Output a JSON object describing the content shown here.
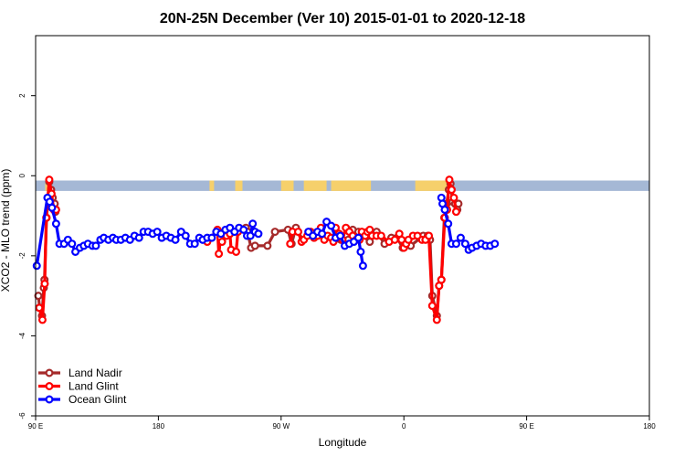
{
  "chart_data": {
    "type": "line",
    "title": "20N-25N December (Ver 10)   2015-01-01 to 2020-12-18",
    "xlabel": "Longitude",
    "ylabel": "XCO2 - MLO trend (ppm)",
    "xlim": [
      -90,
      180
    ],
    "ylim": [
      -6,
      3.5
    ],
    "x_ticks": [
      -90,
      -36,
      18,
      72,
      126,
      180
    ],
    "x_tick_labels": [
      "90 E",
      "180",
      "90 W",
      "0",
      "90 E",
      "180"
    ],
    "y_ticks": [
      -6,
      -4,
      -2,
      0,
      2
    ],
    "y_tick_labels": [
      "-6",
      "-4",
      "-2",
      "0",
      "2"
    ],
    "grid": false,
    "legend_position": "bottom-left",
    "land_strip": {
      "y_range": [
        -0.38,
        -0.12
      ],
      "ocean_color": "#a5b8d5",
      "land_color": "#f6d06b",
      "land_x": [
        [
          -85.8,
          -83.6
        ],
        [
          -13.5,
          -11.5
        ],
        [
          -2.2,
          -0.3
        ],
        [
          -0.5,
          1.0
        ],
        [
          18.0,
          23.5
        ],
        [
          28.0,
          38.0
        ],
        [
          40.0,
          57.5
        ],
        [
          77.0,
          92.5
        ]
      ]
    },
    "series": [
      {
        "name": "Land Nadir",
        "color": "#a52a2a",
        "points": [
          [
            -88.8,
            -3.0
          ],
          [
            -88.2,
            -3.3
          ],
          [
            -87.2,
            -3.5
          ],
          [
            -86.4,
            -2.8
          ],
          [
            -86.1,
            -2.6
          ],
          [
            -85.2,
            -1.05
          ],
          [
            -84.0,
            -0.15
          ],
          [
            -83.2,
            -0.35
          ],
          [
            -82.5,
            -0.55
          ],
          [
            -81.6,
            -0.7
          ],
          [
            -81.3,
            -0.9
          ],
          [
            2.5,
            -1.3
          ],
          [
            3.2,
            -1.4
          ],
          [
            4.8,
            -1.8
          ],
          [
            6.5,
            -1.75
          ],
          [
            12.0,
            -1.75
          ],
          [
            15.3,
            -1.4
          ],
          [
            21.0,
            -1.35
          ],
          [
            22.6,
            -1.7
          ],
          [
            24.5,
            -1.3
          ],
          [
            27.5,
            -1.6
          ],
          [
            41.5,
            -1.6
          ],
          [
            44.3,
            -1.6
          ],
          [
            47.5,
            -1.6
          ],
          [
            49.5,
            -1.35
          ],
          [
            52.0,
            -1.4
          ],
          [
            57.0,
            -1.65
          ],
          [
            60.0,
            -1.4
          ],
          [
            63.5,
            -1.7
          ],
          [
            66.5,
            -1.55
          ],
          [
            69.0,
            -1.55
          ],
          [
            71.5,
            -1.8
          ],
          [
            75.0,
            -1.75
          ],
          [
            80.5,
            -1.5
          ],
          [
            82.5,
            -1.5
          ],
          [
            83.5,
            -1.6
          ],
          [
            84.5,
            -3.0
          ],
          [
            86.5,
            -3.5
          ],
          [
            87.5,
            -2.75
          ],
          [
            88.5,
            -2.6
          ],
          [
            89.8,
            -1.05
          ],
          [
            90.8,
            -0.7
          ],
          [
            91.8,
            -0.35
          ],
          [
            92.5,
            -0.2
          ],
          [
            93.5,
            -0.65
          ],
          [
            94.5,
            -0.7
          ],
          [
            95.5,
            -0.85
          ],
          [
            96.0,
            -0.7
          ]
        ]
      },
      {
        "name": "Land Glint",
        "color": "#ff0000",
        "points": [
          [
            -88.4,
            -3.3
          ],
          [
            -87.0,
            -3.6
          ],
          [
            -86.0,
            -2.7
          ],
          [
            -85.3,
            -1.05
          ],
          [
            -84.0,
            -0.1
          ],
          [
            -83.0,
            -0.45
          ],
          [
            -82.0,
            -0.85
          ],
          [
            -81.0,
            -0.85
          ],
          [
            -14.5,
            -1.65
          ],
          [
            -10.0,
            -1.35
          ],
          [
            -9.4,
            -1.95
          ],
          [
            -8.6,
            -1.55
          ],
          [
            -8.0,
            -1.65
          ],
          [
            -6.9,
            -1.4
          ],
          [
            -6.0,
            -1.5
          ],
          [
            -4.5,
            -1.45
          ],
          [
            -4.0,
            -1.85
          ],
          [
            -1.8,
            -1.9
          ],
          [
            -1.0,
            -1.4
          ],
          [
            22.0,
            -1.7
          ],
          [
            23.0,
            -1.4
          ],
          [
            25.5,
            -1.4
          ],
          [
            27.0,
            -1.65
          ],
          [
            28.0,
            -1.6
          ],
          [
            29.5,
            -1.5
          ],
          [
            31.0,
            -1.4
          ],
          [
            32.5,
            -1.55
          ],
          [
            34.0,
            -1.5
          ],
          [
            35.5,
            -1.3
          ],
          [
            37.0,
            -1.6
          ],
          [
            38.5,
            -1.5
          ],
          [
            40.0,
            -1.55
          ],
          [
            41.0,
            -1.65
          ],
          [
            42.0,
            -1.3
          ],
          [
            43.5,
            -1.45
          ],
          [
            45.0,
            -1.6
          ],
          [
            46.5,
            -1.3
          ],
          [
            48.0,
            -1.4
          ],
          [
            49.5,
            -1.5
          ],
          [
            51.0,
            -1.6
          ],
          [
            52.5,
            -1.6
          ],
          [
            53.5,
            -1.4
          ],
          [
            55.0,
            -1.5
          ],
          [
            56.0,
            -1.4
          ],
          [
            57.0,
            -1.35
          ],
          [
            58.0,
            -1.5
          ],
          [
            60.0,
            -1.5
          ],
          [
            62.0,
            -1.5
          ],
          [
            65.5,
            -1.65
          ],
          [
            68.0,
            -1.6
          ],
          [
            70.0,
            -1.45
          ],
          [
            71.0,
            -1.6
          ],
          [
            72.0,
            -1.8
          ],
          [
            73.0,
            -1.7
          ],
          [
            74.0,
            -1.6
          ],
          [
            76.0,
            -1.5
          ],
          [
            78.0,
            -1.5
          ],
          [
            80.0,
            -1.6
          ],
          [
            81.5,
            -1.6
          ],
          [
            83.0,
            -1.5
          ],
          [
            84.5,
            -3.25
          ],
          [
            86.5,
            -3.6
          ],
          [
            87.5,
            -2.75
          ],
          [
            88.5,
            -2.6
          ],
          [
            90.0,
            -1.05
          ],
          [
            91.0,
            -0.85
          ],
          [
            92.0,
            -0.1
          ],
          [
            93.0,
            -0.35
          ],
          [
            94.0,
            -0.55
          ],
          [
            95.0,
            -0.9
          ]
        ]
      },
      {
        "name": "Ocean Glint",
        "color": "#0000ff",
        "points": [
          [
            -89.5,
            -2.25
          ],
          [
            -84.8,
            -0.55
          ],
          [
            -83.8,
            -0.65
          ],
          [
            -82.8,
            -0.8
          ],
          [
            -81.0,
            -1.2
          ],
          [
            -79.5,
            -1.7
          ],
          [
            -77.5,
            -1.7
          ],
          [
            -75.8,
            -1.6
          ],
          [
            -74.0,
            -1.7
          ],
          [
            -72.5,
            -1.9
          ],
          [
            -70.5,
            -1.8
          ],
          [
            -68.8,
            -1.75
          ],
          [
            -67.0,
            -1.7
          ],
          [
            -65.0,
            -1.75
          ],
          [
            -63.5,
            -1.75
          ],
          [
            -61.5,
            -1.6
          ],
          [
            -60.0,
            -1.55
          ],
          [
            -58.0,
            -1.6
          ],
          [
            -56.0,
            -1.55
          ],
          [
            -54.5,
            -1.6
          ],
          [
            -52.5,
            -1.6
          ],
          [
            -50.5,
            -1.55
          ],
          [
            -48.5,
            -1.6
          ],
          [
            -46.5,
            -1.5
          ],
          [
            -44.5,
            -1.55
          ],
          [
            -42.5,
            -1.4
          ],
          [
            -40.5,
            -1.4
          ],
          [
            -38.5,
            -1.45
          ],
          [
            -36.5,
            -1.4
          ],
          [
            -34.5,
            -1.55
          ],
          [
            -32.5,
            -1.5
          ],
          [
            -30.5,
            -1.55
          ],
          [
            -28.5,
            -1.6
          ],
          [
            -26.0,
            -1.4
          ],
          [
            -24.0,
            -1.5
          ],
          [
            -22.0,
            -1.7
          ],
          [
            -20.0,
            -1.7
          ],
          [
            -18.0,
            -1.55
          ],
          [
            -16.5,
            -1.6
          ],
          [
            -14.5,
            -1.55
          ],
          [
            -12.5,
            -1.55
          ],
          [
            -10.5,
            -1.4
          ],
          [
            -8.5,
            -1.45
          ],
          [
            -6.5,
            -1.35
          ],
          [
            -4.5,
            -1.3
          ],
          [
            -2.5,
            -1.4
          ],
          [
            -0.5,
            -1.3
          ],
          [
            1.5,
            -1.35
          ],
          [
            3.0,
            -1.5
          ],
          [
            4.5,
            -1.5
          ],
          [
            5.5,
            -1.2
          ],
          [
            6.5,
            -1.4
          ],
          [
            8.0,
            -1.45
          ],
          [
            30.0,
            -1.4
          ],
          [
            32.0,
            -1.5
          ],
          [
            34.0,
            -1.4
          ],
          [
            36.0,
            -1.45
          ],
          [
            38.0,
            -1.15
          ],
          [
            40.0,
            -1.25
          ],
          [
            42.0,
            -1.55
          ],
          [
            44.0,
            -1.5
          ],
          [
            46.0,
            -1.75
          ],
          [
            48.0,
            -1.7
          ],
          [
            50.0,
            -1.65
          ],
          [
            52.0,
            -1.55
          ],
          [
            53.0,
            -1.9
          ],
          [
            54.0,
            -2.25
          ],
          [
            88.5,
            -0.55
          ],
          [
            89.0,
            -0.7
          ],
          [
            90.0,
            -0.85
          ],
          [
            91.5,
            -1.2
          ],
          [
            93.0,
            -1.7
          ],
          [
            95.0,
            -1.7
          ],
          [
            97.0,
            -1.55
          ],
          [
            99.0,
            -1.7
          ],
          [
            100.5,
            -1.85
          ],
          [
            102.0,
            -1.8
          ],
          [
            104.0,
            -1.75
          ],
          [
            106.0,
            -1.7
          ],
          [
            108.0,
            -1.75
          ],
          [
            110.0,
            -1.75
          ],
          [
            112.0,
            -1.7
          ]
        ]
      }
    ]
  }
}
